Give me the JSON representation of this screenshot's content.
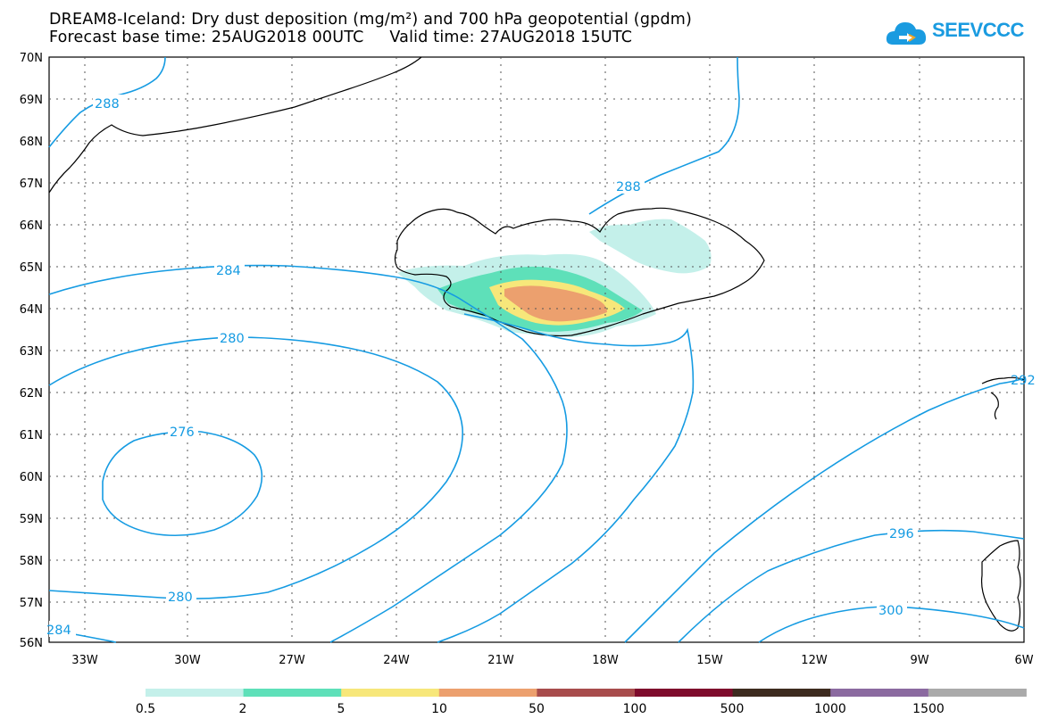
{
  "title_line1": "DREAM8-Iceland: Dry dust deposition (mg/m²) and 700 hPa geopotential (gpdm)",
  "title_line2": "Forecast base time: 25AUG2018 00UTC     Valid time: 27AUG2018 15UTC",
  "logo_text": "SEEVCCC",
  "map": {
    "latitude_labels": [
      "70N",
      "69N",
      "68N",
      "67N",
      "66N",
      "65N",
      "64N",
      "63N",
      "62N",
      "61N",
      "60N",
      "59N",
      "58N",
      "57N",
      "56N"
    ],
    "longitude_labels": [
      "33W",
      "30W",
      "27W",
      "24W",
      "21W",
      "18W",
      "15W",
      "12W",
      "9W",
      "6W"
    ],
    "contour_labels": [
      "288",
      "288",
      "284",
      "280",
      "276",
      "280",
      "284",
      "296",
      "300",
      "292"
    ]
  },
  "legend": {
    "labels": [
      "0.5",
      "2",
      "5",
      "10",
      "50",
      "100",
      "500",
      "1000",
      "1500"
    ],
    "colors": [
      "#c4f0ea",
      "#5ee0b9",
      "#f7e77a",
      "#eca06e",
      "#a84c4c",
      "#7e0b2c",
      "#3d2b1f",
      "#8b6aa0",
      "#aaaaaa"
    ]
  },
  "colors": {
    "contour": "#159be2",
    "dust_light": "#c4f0ea",
    "dust_green": "#5ee0b9",
    "dust_yellow": "#f7e77a",
    "dust_orange": "#eca06e"
  }
}
